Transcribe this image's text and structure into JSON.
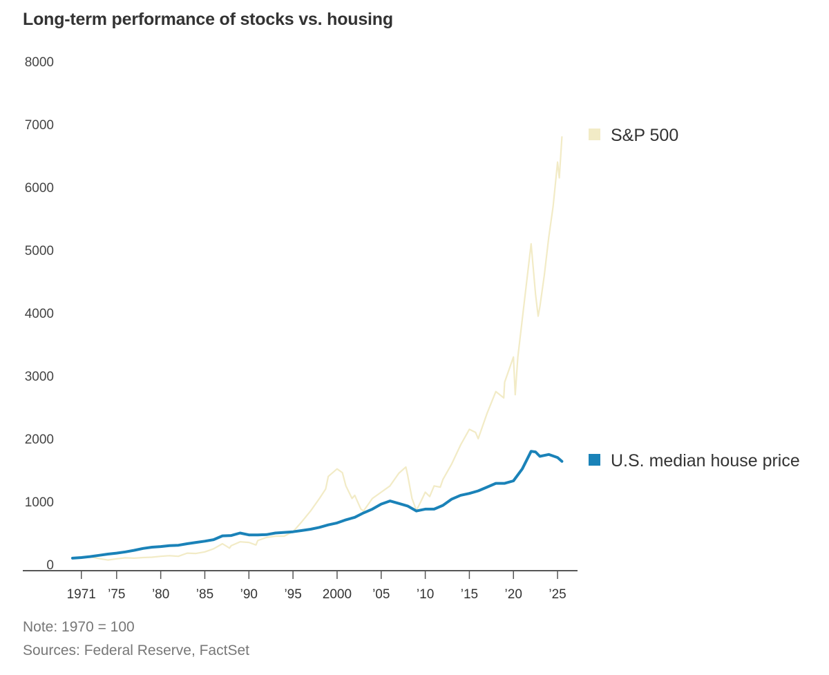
{
  "chart_data": {
    "type": "line",
    "title": "Long-term performance of stocks vs. housing",
    "xlabel": "",
    "ylabel": "",
    "xlim": [
      1970,
      2025.7
    ],
    "ylim": [
      0,
      8000
    ],
    "yticks": [
      0,
      1000,
      2000,
      3000,
      4000,
      5000,
      6000,
      7000,
      8000
    ],
    "ytick_labels": [
      "0",
      "1000",
      "2000",
      "3000",
      "4000",
      "5000",
      "6000",
      "7000",
      "8000"
    ],
    "xticks": [
      1971,
      1975,
      1980,
      1985,
      1990,
      1995,
      2000,
      2005,
      2010,
      2015,
      2020,
      2025
    ],
    "xtick_labels": [
      "1971",
      "’75",
      "’80",
      "’85",
      "’90",
      "’95",
      "2000",
      "’05",
      "’10",
      "’15",
      "’20",
      "’25"
    ],
    "grid": false,
    "legend": "right-inline",
    "note": "Note: 1970 = 100",
    "sources": "Sources: Federal Reserve, FactSet",
    "series": [
      {
        "name": "S&P 500",
        "color": "#f2ebc6",
        "x": [
          1970,
          1971,
          1972,
          1973,
          1974,
          1975,
          1976,
          1977,
          1978,
          1979,
          1980,
          1981,
          1982,
          1983,
          1984,
          1985,
          1986,
          1987,
          1987.8,
          1988,
          1989,
          1990,
          1990.8,
          1991,
          1992,
          1993,
          1994,
          1995,
          1996,
          1997,
          1998,
          1998.7,
          1999,
          2000,
          2000.6,
          2001,
          2001.7,
          2002,
          2002.7,
          2003,
          2004,
          2005,
          2006,
          2007,
          2007.8,
          2008,
          2008.5,
          2009,
          2009.5,
          2010,
          2010.5,
          2011,
          2011.7,
          2012,
          2013,
          2014,
          2015,
          2015.7,
          2016,
          2017,
          2018,
          2018.9,
          2019,
          2019.5,
          2020,
          2020.2,
          2020.5,
          2021,
          2021.5,
          2022,
          2022.5,
          2022.8,
          2023,
          2023.5,
          2024,
          2024.5,
          2025,
          2025.2,
          2025.5
        ],
        "y": [
          100,
          110,
          120,
          95,
          70,
          90,
          105,
          100,
          110,
          115,
          130,
          140,
          130,
          180,
          175,
          200,
          250,
          330,
          260,
          300,
          360,
          350,
          310,
          380,
          430,
          450,
          450,
          520,
          680,
          850,
          1050,
          1200,
          1400,
          1520,
          1460,
          1250,
          1050,
          1100,
          880,
          850,
          1050,
          1150,
          1250,
          1450,
          1550,
          1420,
          1050,
          860,
          1000,
          1150,
          1080,
          1250,
          1230,
          1350,
          1600,
          1900,
          2150,
          2100,
          2000,
          2400,
          2750,
          2650,
          2900,
          3100,
          3300,
          2700,
          3300,
          3900,
          4500,
          5100,
          4300,
          3950,
          4100,
          4600,
          5200,
          5700,
          6400,
          6150,
          6800
        ]
      },
      {
        "name": "U.S. median house price",
        "color": "#1a82b8",
        "x": [
          1970,
          1971,
          1972,
          1973,
          1974,
          1975,
          1976,
          1977,
          1978,
          1979,
          1980,
          1981,
          1982,
          1983,
          1984,
          1985,
          1986,
          1987,
          1988,
          1989,
          1990,
          1991,
          1992,
          1993,
          1994,
          1995,
          1996,
          1997,
          1998,
          1999,
          2000,
          2001,
          2002,
          2003,
          2004,
          2005,
          2006,
          2007,
          2008,
          2009,
          2010,
          2011,
          2012,
          2013,
          2014,
          2015,
          2016,
          2017,
          2018,
          2019,
          2020,
          2021,
          2022,
          2022.5,
          2023,
          2024,
          2025,
          2025.5
        ],
        "y": [
          100,
          110,
          125,
          145,
          165,
          180,
          200,
          225,
          255,
          275,
          285,
          300,
          305,
          330,
          350,
          370,
          395,
          455,
          460,
          500,
          470,
          470,
          475,
          500,
          510,
          520,
          540,
          560,
          590,
          630,
          660,
          710,
          750,
          820,
          880,
          960,
          1010,
          970,
          930,
          850,
          880,
          880,
          940,
          1040,
          1100,
          1130,
          1170,
          1230,
          1290,
          1290,
          1330,
          1520,
          1800,
          1790,
          1720,
          1750,
          1700,
          1640
        ]
      }
    ]
  }
}
